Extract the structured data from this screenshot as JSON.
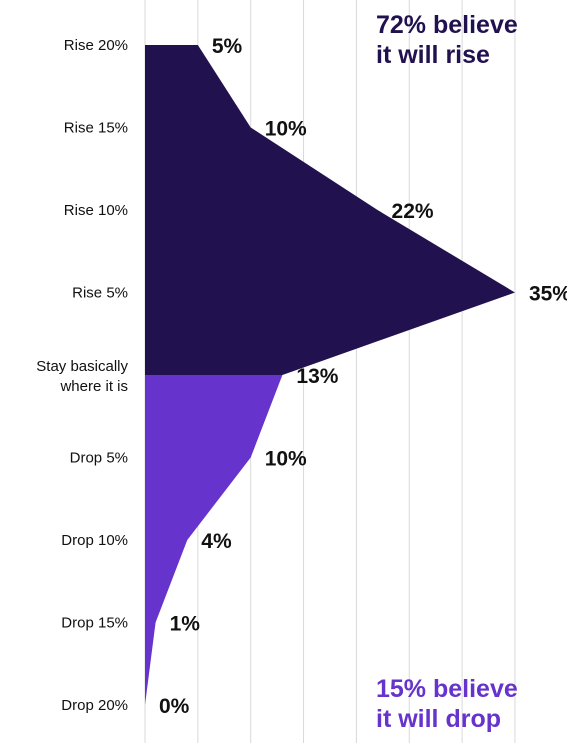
{
  "chart_data": {
    "type": "area",
    "orientation": "horizontal",
    "categories": [
      "Rise 20%",
      "Rise 15%",
      "Rise 10%",
      "Rise 5%",
      "Stay basically where it is",
      "Drop 5%",
      "Drop 10%",
      "Drop 15%",
      "Drop 20%"
    ],
    "category_lines": [
      [
        "Rise 20%"
      ],
      [
        "Rise 15%"
      ],
      [
        "Rise 10%"
      ],
      [
        "Rise 5%"
      ],
      [
        "Stay basically",
        "where it is"
      ],
      [
        "Drop 5%"
      ],
      [
        "Drop 10%"
      ],
      [
        "Drop 15%"
      ],
      [
        "Drop 20%"
      ]
    ],
    "values": [
      5,
      10,
      22,
      35,
      13,
      10,
      4,
      1,
      0
    ],
    "value_labels": [
      "5%",
      "10%",
      "22%",
      "35%",
      "13%",
      "10%",
      "4%",
      "1%",
      "0%"
    ],
    "value_unit": "%",
    "xlim": [
      0,
      35
    ],
    "grid": true,
    "segments": [
      {
        "name": "rise",
        "from_index": 0,
        "to_index": 4,
        "color": "#22114f"
      },
      {
        "name": "drop",
        "from_index": 4,
        "to_index": 8,
        "color": "#6633cc"
      }
    ]
  },
  "callouts": {
    "rise": {
      "line1": "72% believe",
      "line2": "it will rise",
      "color": "#22114f"
    },
    "drop": {
      "line1": "15% believe",
      "line2": "it will drop",
      "color": "#6633cc"
    }
  },
  "colors": {
    "rise": "#22114f",
    "drop": "#6633cc",
    "grid": "#d9d9d9",
    "text": "#111111"
  }
}
